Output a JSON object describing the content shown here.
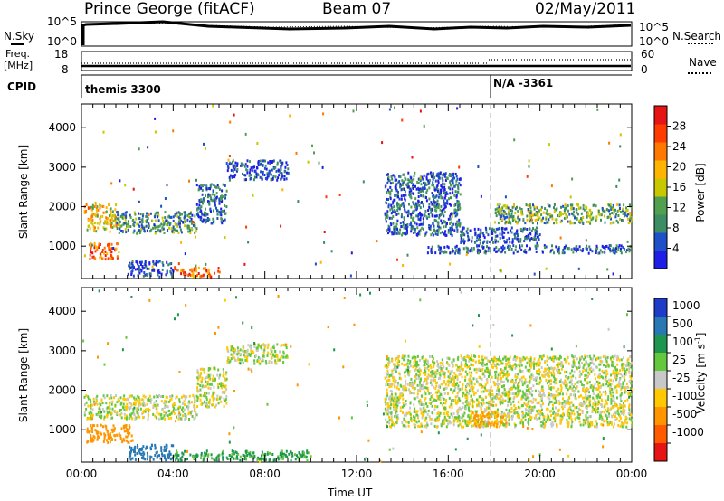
{
  "header": {
    "station": "Prince George (fitACF)",
    "beam": "Beam 07",
    "date": "02/May/2011"
  },
  "top_panels": {
    "nsky_label": "N.Sky",
    "nsearch_label": "N.Search",
    "freq_label_1": "Freq.",
    "freq_label_2": "[MHz]",
    "nave_label": "Nave",
    "cpid_label": "CPID",
    "noise_ticks_left": [
      "10^5",
      "10^0"
    ],
    "noise_ticks_right": [
      "10^5",
      "10^0"
    ],
    "freq_ticks_left": [
      "18",
      "8"
    ],
    "nave_ticks_right": [
      "60",
      "0"
    ],
    "cpid_segments": [
      {
        "label": "themis 3300",
        "start_hour": 0.0
      },
      {
        "label": "N/A -3361",
        "start_hour": 18.0
      }
    ]
  },
  "colors": {
    "power_scale": [
      "#1e1ee6",
      "#1e50c8",
      "#3c8c64",
      "#50a050",
      "#c8c800",
      "#ffb400",
      "#ff7800",
      "#ff3c00",
      "#e61414"
    ],
    "velocity_scale": [
      "#1e3cc8",
      "#2878b4",
      "#1e9650",
      "#64c83c",
      "#c8c8c8",
      "#ffc800",
      "#ff9600",
      "#ff5a00",
      "#e61414"
    ]
  },
  "chart_data": [
    {
      "type": "heatmap",
      "panel": "power",
      "xlabel": "Time UT",
      "ylabel": "Slant Range [km]",
      "x_unit": "hours UT",
      "xlim": [
        0,
        24
      ],
      "ylim": [
        180,
        4600
      ],
      "yticks": [
        "1000",
        "2000",
        "3000",
        "4000"
      ],
      "colorbar": {
        "title": "Power [dB]",
        "range": [
          0,
          32
        ],
        "ticks": [
          "4",
          "8",
          "12",
          "16",
          "20",
          "24",
          "28"
        ]
      },
      "scatter_bands": [
        {
          "t_start": 0.1,
          "t_end": 1.5,
          "range_start": 1400,
          "range_end": 2100,
          "power": 18
        },
        {
          "t_start": 1.5,
          "t_end": 5.0,
          "range_start": 1350,
          "range_end": 1900,
          "power": 10
        },
        {
          "t_start": 5.0,
          "t_end": 6.3,
          "range_start": 1600,
          "range_end": 2600,
          "power": 7
        },
        {
          "t_start": 6.3,
          "t_end": 9.0,
          "range_start": 2700,
          "range_end": 3200,
          "power": 5
        },
        {
          "t_start": 0.3,
          "t_end": 1.6,
          "range_start": 700,
          "range_end": 1100,
          "power": 24
        },
        {
          "t_start": 13.2,
          "t_end": 16.5,
          "range_start": 1300,
          "range_end": 2900,
          "power": 6
        },
        {
          "t_start": 16.5,
          "t_end": 20.0,
          "range_start": 1100,
          "range_end": 1500,
          "power": 5
        },
        {
          "t_start": 18.0,
          "t_end": 24.0,
          "range_start": 1600,
          "range_end": 2100,
          "power": 12
        },
        {
          "t_start": 15.0,
          "t_end": 24.0,
          "range_start": 850,
          "range_end": 1050,
          "power": 6
        },
        {
          "t_start": 2.0,
          "t_end": 4.0,
          "range_start": 250,
          "range_end": 650,
          "power": 4
        },
        {
          "t_start": 4.0,
          "t_end": 6.0,
          "range_start": 250,
          "range_end": 500,
          "power": 25
        }
      ]
    },
    {
      "type": "heatmap",
      "panel": "velocity",
      "xlabel": "Time UT",
      "ylabel": "Slant Range [km]",
      "x_unit": "hours UT",
      "xlim": [
        0,
        24
      ],
      "ylim": [
        180,
        4600
      ],
      "yticks": [
        "1000",
        "2000",
        "3000",
        "4000"
      ],
      "xticks": [
        "00:00",
        "04:00",
        "08:00",
        "12:00",
        "16:00",
        "20:00",
        "00:00"
      ],
      "colorbar": {
        "title": "Velocity [m s-1]",
        "ticks": [
          "1000",
          "500",
          "100",
          "25",
          "-25",
          "-100",
          "-500",
          "-1000"
        ]
      },
      "scatter_bands": [
        {
          "t_start": 0.1,
          "t_end": 5.0,
          "range_start": 1300,
          "range_end": 1900,
          "velocity": 0
        },
        {
          "t_start": 5.0,
          "t_end": 6.3,
          "range_start": 1600,
          "range_end": 2600,
          "velocity": 0
        },
        {
          "t_start": 6.3,
          "t_end": 9.0,
          "range_start": 2700,
          "range_end": 3200,
          "velocity": 0
        },
        {
          "t_start": 0.2,
          "t_end": 2.2,
          "range_start": 700,
          "range_end": 1150,
          "velocity": -300
        },
        {
          "t_start": 13.2,
          "t_end": 24.0,
          "range_start": 1100,
          "range_end": 2900,
          "velocity": 0
        },
        {
          "t_start": 17.0,
          "t_end": 18.5,
          "range_start": 1100,
          "range_end": 1500,
          "velocity": -120
        },
        {
          "t_start": 2.0,
          "t_end": 4.0,
          "range_start": 250,
          "range_end": 650,
          "velocity": 700
        },
        {
          "t_start": 4.0,
          "t_end": 10.0,
          "range_start": 250,
          "range_end": 500,
          "velocity": 150
        }
      ]
    }
  ]
}
